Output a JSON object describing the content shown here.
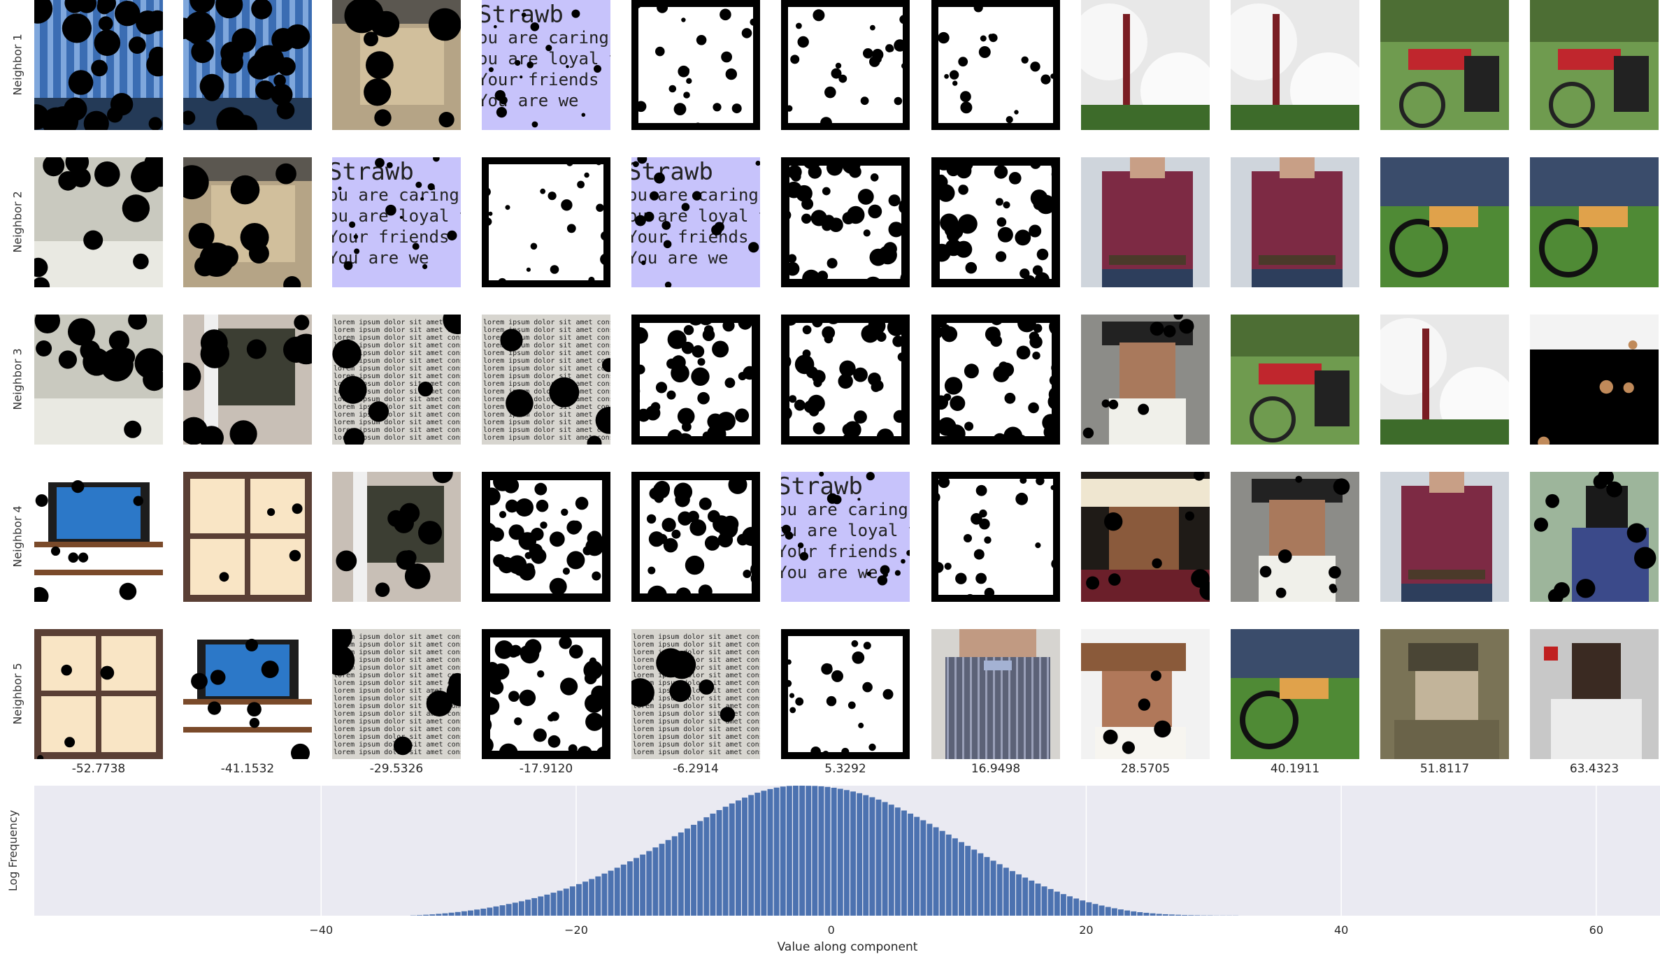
{
  "row_labels": [
    "Neighbor 1",
    "Neighbor 2",
    "Neighbor 3",
    "Neighbor 4",
    "Neighbor 5"
  ],
  "column_values": [
    "-52.7738",
    "-41.1532",
    "-29.5326",
    "-17.9120",
    "-6.2914",
    "5.3292",
    "16.9498",
    "28.5705",
    "40.1911",
    "51.8117",
    "63.4323"
  ],
  "thumbnails": [
    [
      "curtain-photo",
      "curtain-photo",
      "cloth-photo",
      "text-lavender",
      "white-noise-light",
      "white-noise-light",
      "white-noise-light",
      "bike-tanks-photo",
      "bike-tanks-photo",
      "kids-bike-photo",
      "kids-bike-photo"
    ],
    [
      "room-photo",
      "cloth-photo",
      "text-lavender",
      "white-noise-light",
      "text-lavender",
      "white-noise-medium",
      "white-noise-medium",
      "man-shirt-photo",
      "man-shirt-photo",
      "moped-photo",
      "moped-photo"
    ],
    [
      "room-photo",
      "door-photo",
      "newspaper-text",
      "newspaper-text",
      "white-noise-medium",
      "white-noise-medium",
      "white-noise-medium",
      "old-man-hat-photo",
      "kids-bike-photo",
      "bike-tanks-photo",
      "dark-blob-photo"
    ],
    [
      "tv-stand-photo",
      "cabinet-photo",
      "door-photo",
      "white-noise-medium",
      "white-noise-medium",
      "text-lavender",
      "white-noise-light",
      "cowboy-photo",
      "old-man-hat-photo",
      "man-shirt-photo",
      "rider-photo"
    ],
    [
      "cabinet-photo",
      "tv-stand-photo",
      "newspaper-text",
      "white-noise-medium",
      "newspaper-text",
      "white-noise-light",
      "man-bowtie-photo",
      "man-hat-photo",
      "moped-photo",
      "soldier-sepia-photo",
      "man-smiling-photo"
    ]
  ],
  "chart_data": {
    "type": "bar",
    "xlabel": "Value along component",
    "ylabel": "Log Frequency",
    "xlim": [
      -62.5,
      65
    ],
    "ylim": [
      0,
      1.0
    ],
    "xticks": [
      -40,
      -20,
      0,
      20,
      40,
      60
    ],
    "grid": true,
    "bar_color": "#4c72b0",
    "background": "#eaeaf2",
    "bins": {
      "x": [
        -32.75,
        -32.25,
        -31.75,
        -31.25,
        -30.75,
        -30.25,
        -29.75,
        -29.25,
        -28.75,
        -28.25,
        -27.75,
        -27.25,
        -26.75,
        -26.25,
        -25.75,
        -25.25,
        -24.75,
        -24.25,
        -23.75,
        -23.25,
        -22.75,
        -22.25,
        -21.75,
        -21.25,
        -20.75,
        -20.25,
        -19.75,
        -19.25,
        -18.75,
        -18.25,
        -17.75,
        -17.25,
        -16.75,
        -16.25,
        -15.75,
        -15.25,
        -14.75,
        -14.25,
        -13.75,
        -13.25,
        -12.75,
        -12.25,
        -11.75,
        -11.25,
        -10.75,
        -10.25,
        -9.75,
        -9.25,
        -8.75,
        -8.25,
        -7.75,
        -7.25,
        -6.75,
        -6.25,
        -5.75,
        -5.25,
        -4.75,
        -4.25,
        -3.75,
        -3.25,
        -2.75,
        -2.25,
        -1.75,
        -1.25,
        -0.75,
        -0.25,
        0.25,
        0.75,
        1.25,
        1.75,
        2.25,
        2.75,
        3.25,
        3.75,
        4.25,
        4.75,
        5.25,
        5.75,
        6.25,
        6.75,
        7.25,
        7.75,
        8.25,
        8.75,
        9.25,
        9.75,
        10.25,
        10.75,
        11.25,
        11.75,
        12.25,
        12.75,
        13.25,
        13.75,
        14.25,
        14.75,
        15.25,
        15.75,
        16.25,
        16.75,
        17.25,
        17.75,
        18.25,
        18.75,
        19.25,
        19.75,
        20.25,
        20.75,
        21.25,
        21.75,
        22.25,
        22.75,
        23.25,
        23.75,
        24.25,
        24.75,
        25.25,
        25.75,
        26.25,
        26.75,
        27.25,
        27.75,
        28.25,
        28.75,
        29.25,
        29.75,
        30.25,
        30.75,
        31.25,
        31.75,
        32.25,
        32.75,
        33.25,
        33.75
      ],
      "log_frequency": [
        0.002,
        0.004,
        0.007,
        0.01,
        0.014,
        0.018,
        0.023,
        0.028,
        0.034,
        0.04,
        0.047,
        0.054,
        0.062,
        0.071,
        0.08,
        0.09,
        0.1,
        0.111,
        0.123,
        0.135,
        0.148,
        0.162,
        0.177,
        0.192,
        0.208,
        0.225,
        0.243,
        0.262,
        0.282,
        0.302,
        0.324,
        0.346,
        0.369,
        0.393,
        0.418,
        0.444,
        0.47,
        0.497,
        0.525,
        0.553,
        0.582,
        0.611,
        0.64,
        0.67,
        0.699,
        0.728,
        0.757,
        0.785,
        0.812,
        0.838,
        0.863,
        0.886,
        0.908,
        0.928,
        0.946,
        0.961,
        0.974,
        0.985,
        0.993,
        0.998,
        1.0,
        1.0,
        0.999,
        0.998,
        0.995,
        0.99,
        0.984,
        0.976,
        0.966,
        0.955,
        0.942,
        0.927,
        0.911,
        0.893,
        0.874,
        0.854,
        0.832,
        0.809,
        0.785,
        0.76,
        0.734,
        0.707,
        0.68,
        0.652,
        0.624,
        0.595,
        0.566,
        0.537,
        0.508,
        0.48,
        0.451,
        0.423,
        0.396,
        0.369,
        0.343,
        0.318,
        0.293,
        0.27,
        0.247,
        0.225,
        0.205,
        0.185,
        0.166,
        0.149,
        0.132,
        0.117,
        0.103,
        0.09,
        0.078,
        0.067,
        0.057,
        0.048,
        0.04,
        0.033,
        0.027,
        0.022,
        0.018,
        0.014,
        0.011,
        0.009,
        0.007,
        0.005,
        0.004,
        0.003,
        0.002,
        0.002,
        0.001,
        0.001,
        0.001,
        0.001,
        0.0,
        0.0,
        0.0,
        0.0
      ]
    }
  }
}
